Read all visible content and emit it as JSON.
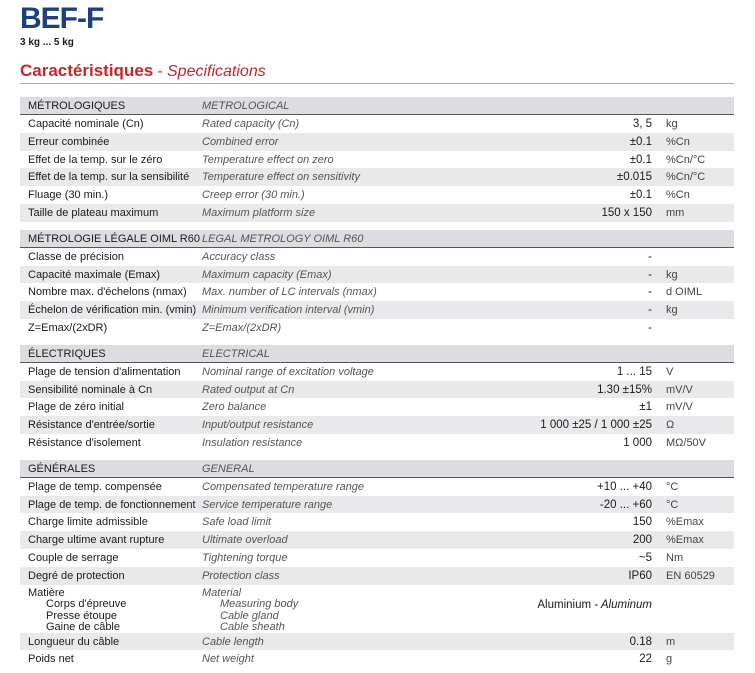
{
  "header": {
    "title": "BEF-F",
    "subtitle": "3 kg ... 5 kg",
    "heading": "Caractéristiques",
    "heading_en": "- Specifications"
  },
  "sections": [
    {
      "header_fr": "MÉTROLOGIQUES",
      "header_en": "METROLOGICAL",
      "rows": [
        {
          "fr": "Capacité nominale (Cn)",
          "en": "Rated capacity (Cn)",
          "value": "3, 5",
          "unit": "kg"
        },
        {
          "fr": "Erreur combinée",
          "en": "Combined error",
          "value": "±0.1",
          "unit": "%Cn"
        },
        {
          "fr": "Effet de la temp. sur le zéro",
          "en": "Temperature effect on zero",
          "value": "±0.1",
          "unit": "%Cn/°C"
        },
        {
          "fr": "Effet de la temp. sur la sensibilité",
          "en": "Temperature effect on sensitivity",
          "value": "±0.015",
          "unit": "%Cn/°C"
        },
        {
          "fr": "Fluage (30 min.)",
          "en": "Creep error (30 min.)",
          "value": "±0.1",
          "unit": "%Cn"
        },
        {
          "fr": "Taille de plateau maximum",
          "en": "Maximum platform size",
          "value": "150 x 150",
          "unit": "mm"
        }
      ]
    },
    {
      "header_fr": "MÉTROLOGIE LÉGALE OIML R60",
      "header_en": "LEGAL METROLOGY OIML R60",
      "rows": [
        {
          "fr": "Classe de précision",
          "en": "Accuracy class",
          "value": "-"
        },
        {
          "fr": "Capacité maximale (Emax)",
          "en": "Maximum capacity (Emax)",
          "value": "-",
          "unit": "kg"
        },
        {
          "fr": "Nombre max. d'échelons (nmax)",
          "en": "Max. number of LC intervals (nmax)",
          "value": "-",
          "unit": "d OIML"
        },
        {
          "fr": "Échelon de vérification min. (vmin)",
          "en": "Minimum verification interval (vmin)",
          "value": "-",
          "unit": "kg"
        },
        {
          "fr": "Z=Emax/(2xDR)",
          "en": "Z=Emax/(2xDR)",
          "value": "-"
        }
      ]
    },
    {
      "header_fr": "ÉLECTRIQUES",
      "header_en": "ELECTRICAL",
      "rows": [
        {
          "fr": "Plage de tension d'alimentation",
          "en": "Nominal range of excitation voltage",
          "value": "1 ... 15",
          "unit": "V"
        },
        {
          "fr": "Sensibilité nominale à Cn",
          "en": "Rated output at Cn",
          "value": "1.30 ±15%",
          "unit": "mV/V"
        },
        {
          "fr": "Plage de zéro initial",
          "en": "Zero balance",
          "value": "±1",
          "unit": "mV/V"
        },
        {
          "fr": "Résistance d'entrée/sortie",
          "en": "Input/output resistance",
          "value": "1 000 ±25 / 1 000 ±25",
          "unit": "Ω"
        },
        {
          "fr": "Résistance d'isolement",
          "en": "Insulation resistance",
          "value": "1 000",
          "unit": "MΩ/50V"
        }
      ]
    },
    {
      "header_fr": "GÉNÉRALES",
      "header_en": "GENERAL",
      "rows": [
        {
          "fr": "Plage de temp. compensée",
          "en": "Compensated temperature range",
          "value": "+10 ... +40",
          "unit": "°C"
        },
        {
          "fr": "Plage de temp. de fonctionnement",
          "en": "Service temperature range",
          "value": "-20 ... +60",
          "unit": "°C"
        },
        {
          "fr": "Charge limite admissible",
          "en": "Safe load limit",
          "value": "150",
          "unit": "%Emax"
        },
        {
          "fr": "Charge ultime avant rupture",
          "en": "Ultimate overload",
          "value": "200",
          "unit": "%Emax"
        },
        {
          "fr": "Couple de serrage",
          "en": "Tightening torque",
          "value": "~5",
          "unit": "Nm"
        },
        {
          "fr": "Degré de protection",
          "en": "Protection class",
          "value": "IP60",
          "unit": "EN 60529"
        },
        {
          "fr": "Matière",
          "en": "Material",
          "sub_fr": [
            "Corps d'épreuve",
            "Presse étoupe",
            "Gaine de câble"
          ],
          "sub_en": [
            "Measuring body",
            "Cable gland",
            "Cable sheath"
          ],
          "value": "Aluminium",
          "value_en": "- Aluminum"
        },
        {
          "fr": "Longueur du câble",
          "en": "Cable length",
          "value": "0.18",
          "unit": "m"
        },
        {
          "fr": "Poids net",
          "en": "Net weight",
          "value": "22",
          "unit": "g"
        }
      ]
    }
  ]
}
